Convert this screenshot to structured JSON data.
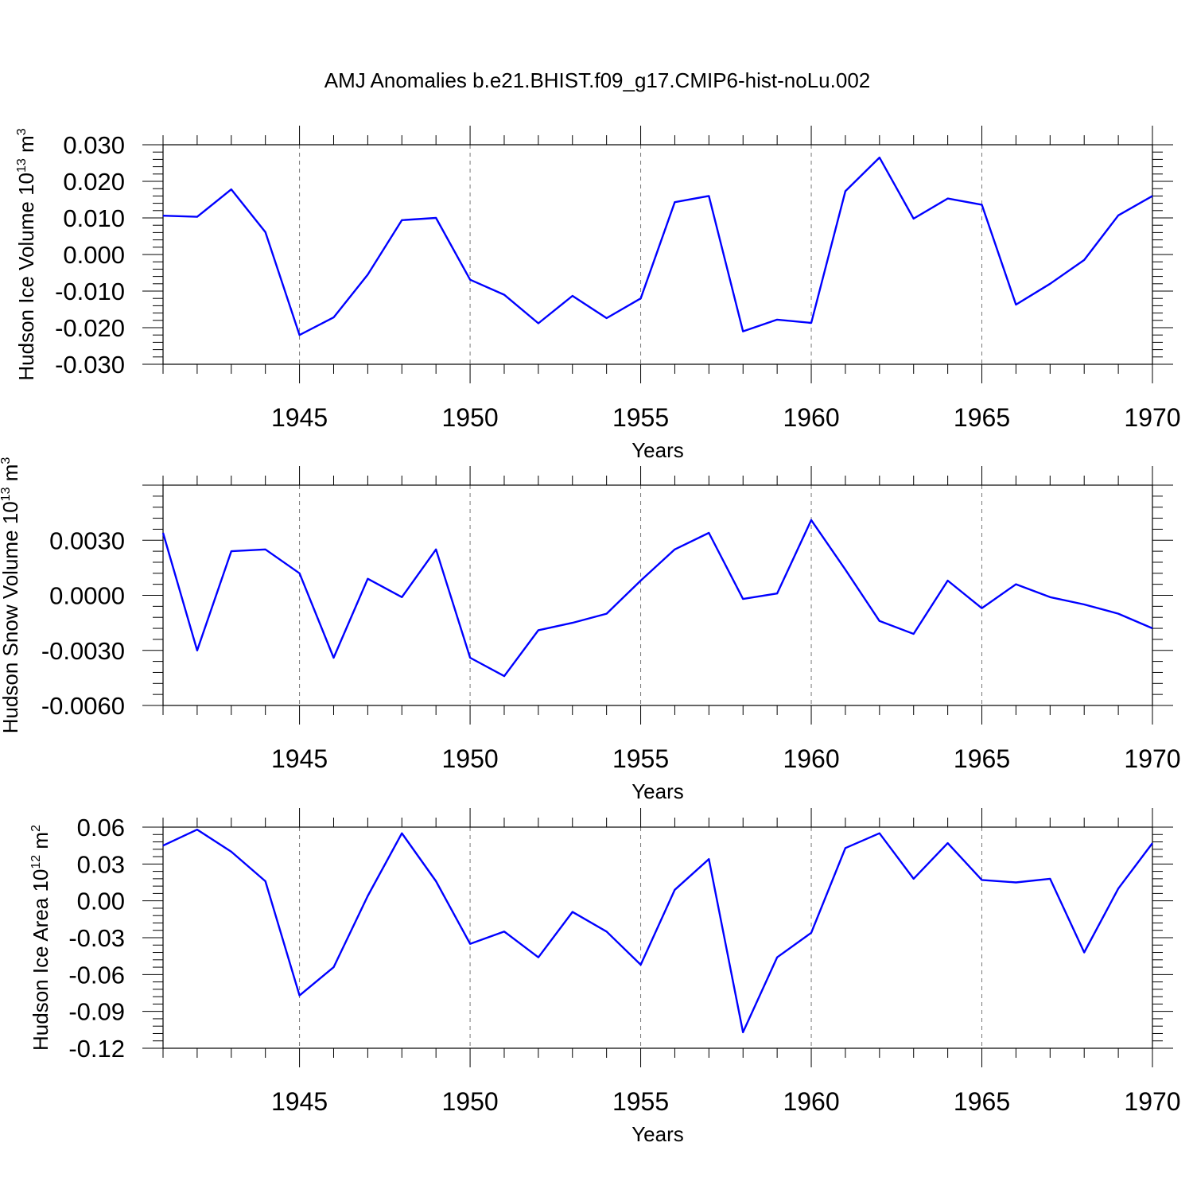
{
  "title": "AMJ Anomalies b.e21.BHIST.f09_g17.CMIP6-hist-noLu.002",
  "colors": {
    "series": "#0000ff",
    "frame": "#000000",
    "grid": "#777777"
  },
  "chart_data": [
    {
      "type": "line",
      "ylabel": "Hudson Ice Volume 10",
      "ylabel_exp": "13",
      "ylabel_unit": " m",
      "ylabel_unit_exp": "3",
      "xlabel": "Years",
      "xlim": [
        1941,
        1970
      ],
      "ylim": [
        -0.03,
        0.03
      ],
      "xticks": [
        1945,
        1950,
        1955,
        1960,
        1965,
        1970
      ],
      "yticks": [
        0.03,
        0.02,
        0.01,
        0.0,
        -0.01,
        -0.02,
        -0.03
      ],
      "ytick_labels": [
        "0.030",
        "0.020",
        "0.010",
        "0.000",
        "-0.010",
        "-0.020",
        "-0.030"
      ],
      "x": [
        1941,
        1942,
        1943,
        1944,
        1945,
        1946,
        1947,
        1948,
        1949,
        1950,
        1951,
        1952,
        1953,
        1954,
        1955,
        1956,
        1957,
        1958,
        1959,
        1960,
        1961,
        1962,
        1963,
        1964,
        1965,
        1966,
        1967,
        1968,
        1969,
        1970
      ],
      "y": [
        0.0106,
        0.0103,
        0.0178,
        0.0061,
        -0.022,
        -0.0172,
        -0.0055,
        0.0094,
        0.01,
        -0.0069,
        -0.011,
        -0.0188,
        -0.0113,
        -0.0174,
        -0.012,
        0.0143,
        0.016,
        -0.021,
        -0.0178,
        -0.0187,
        0.0173,
        0.0265,
        0.0098,
        0.0153,
        0.0136,
        -0.0137,
        -0.008,
        -0.0015,
        0.0107,
        0.016
      ]
    },
    {
      "type": "line",
      "ylabel": "Hudson Snow Volume 10",
      "ylabel_exp": "13",
      "ylabel_unit": " m",
      "ylabel_unit_exp": "3",
      "xlabel": "Years",
      "xlim": [
        1941,
        1970
      ],
      "ylim": [
        -0.006,
        0.006
      ],
      "xticks": [
        1945,
        1950,
        1955,
        1960,
        1965,
        1970
      ],
      "yticks": [
        0.003,
        0.0,
        -0.003,
        -0.006
      ],
      "ytick_labels": [
        "0.0030",
        "0.0000",
        "-0.0030",
        "-0.0060"
      ],
      "x": [
        1941,
        1942,
        1943,
        1944,
        1945,
        1946,
        1947,
        1948,
        1949,
        1950,
        1951,
        1952,
        1953,
        1954,
        1955,
        1956,
        1957,
        1958,
        1959,
        1960,
        1961,
        1962,
        1963,
        1964,
        1965,
        1966,
        1967,
        1968,
        1969,
        1970
      ],
      "y": [
        0.0034,
        -0.003,
        0.0024,
        0.0025,
        0.0012,
        -0.0034,
        0.0009,
        -0.0001,
        0.0025,
        -0.0034,
        -0.0044,
        -0.0019,
        -0.0015,
        -0.001,
        0.0008,
        0.0025,
        0.0034,
        -0.0002,
        0.0001,
        0.0041,
        0.0014,
        -0.0014,
        -0.0021,
        0.0008,
        -0.0007,
        0.0006,
        -0.0001,
        -0.0005,
        -0.001,
        -0.0018
      ]
    },
    {
      "type": "line",
      "ylabel": "Hudson Ice Area 10",
      "ylabel_exp": "12",
      "ylabel_unit": " m",
      "ylabel_unit_exp": "2",
      "xlabel": "Years",
      "xlim": [
        1941,
        1970
      ],
      "ylim": [
        -0.12,
        0.06
      ],
      "xticks": [
        1945,
        1950,
        1955,
        1960,
        1965,
        1970
      ],
      "yticks": [
        0.06,
        0.03,
        0.0,
        -0.03,
        -0.06,
        -0.09,
        -0.12
      ],
      "ytick_labels": [
        "0.06",
        "0.03",
        "0.00",
        "-0.03",
        "-0.06",
        "-0.09",
        "-0.12"
      ],
      "x": [
        1941,
        1942,
        1943,
        1944,
        1945,
        1946,
        1947,
        1948,
        1949,
        1950,
        1951,
        1952,
        1953,
        1954,
        1955,
        1956,
        1957,
        1958,
        1959,
        1960,
        1961,
        1962,
        1963,
        1964,
        1965,
        1966,
        1967,
        1968,
        1969,
        1970
      ],
      "y": [
        0.045,
        0.058,
        0.04,
        0.016,
        -0.077,
        -0.054,
        0.004,
        0.055,
        0.016,
        -0.035,
        -0.025,
        -0.046,
        -0.009,
        -0.025,
        -0.052,
        0.009,
        0.034,
        -0.107,
        -0.046,
        -0.026,
        0.043,
        0.055,
        0.018,
        0.047,
        0.017,
        0.015,
        0.018,
        -0.042,
        0.01,
        0.047
      ]
    }
  ]
}
